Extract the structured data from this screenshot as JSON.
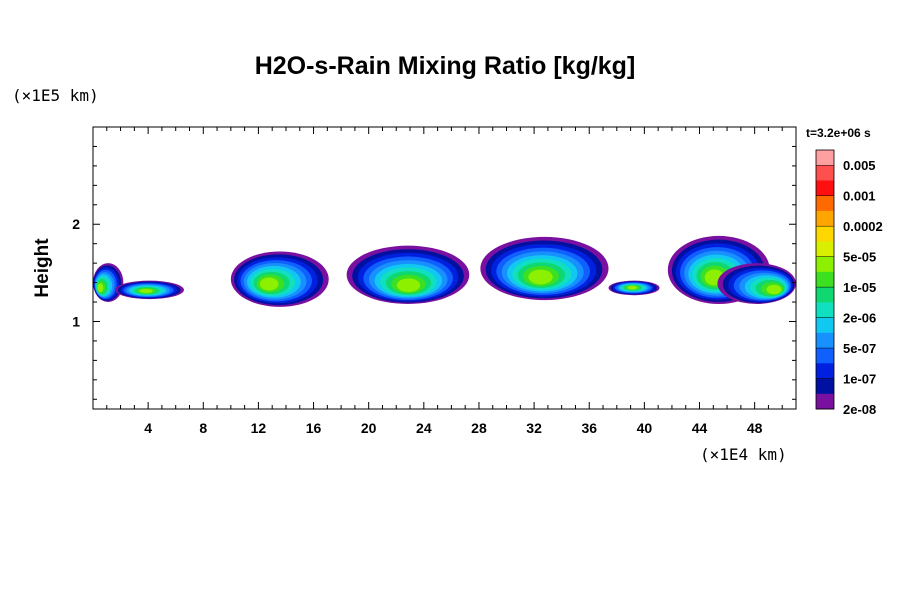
{
  "chart_data": {
    "type": "heatmap",
    "title": "H2O-s-Rain Mixing Ratio [kg/kg]",
    "xlabel": "",
    "ylabel": "Height",
    "x_unit": "(×1E4 km)",
    "y_unit": "(×1E5 km)",
    "time_label": "t=3.2e+06 s",
    "xlim": [
      0,
      51
    ],
    "ylim": [
      0.1,
      3.0
    ],
    "xticks": [
      4,
      8,
      12,
      16,
      20,
      24,
      28,
      32,
      36,
      40,
      44,
      48
    ],
    "xtick_labels": [
      "4",
      "8",
      "12",
      "16",
      "20",
      "24",
      "28",
      "32",
      "36",
      "40",
      "44",
      "48"
    ],
    "yticks": [
      1,
      2
    ],
    "ytick_labels": [
      "1",
      "2"
    ],
    "colorbar": {
      "labels": [
        "0.005",
        "0.001",
        "0.0002",
        "5e-05",
        "1e-05",
        "2e-06",
        "5e-07",
        "1e-07",
        "2e-08"
      ],
      "colors": [
        "#ffa0a0",
        "#ff5050",
        "#ff1010",
        "#ff6a00",
        "#ffa500",
        "#ffd700",
        "#d8f000",
        "#8cf000",
        "#3ce020",
        "#10d870",
        "#10e0c0",
        "#10c8f0",
        "#1890ff",
        "#1060ff",
        "#0020e0",
        "#0010a0",
        "#7a10a0"
      ]
    },
    "clouds": [
      {
        "x": [
          0,
          2.2
        ],
        "y": [
          1.2,
          1.6
        ],
        "core": [
          0.4,
          1.33
        ]
      },
      {
        "x": [
          1.6,
          6.6
        ],
        "y": [
          1.23,
          1.42
        ],
        "core": [
          3.8,
          1.31
        ]
      },
      {
        "x": [
          10,
          17.1
        ],
        "y": [
          1.15,
          1.72
        ],
        "core": [
          12.6,
          1.37
        ]
      },
      {
        "x": [
          18.4,
          27.3
        ],
        "y": [
          1.18,
          1.78
        ],
        "core": [
          22.9,
          1.34
        ]
      },
      {
        "x": [
          28.1,
          37.4
        ],
        "y": [
          1.22,
          1.87
        ],
        "core": [
          32.4,
          1.43
        ]
      },
      {
        "x": [
          37.4,
          41.1
        ],
        "y": [
          1.27,
          1.42
        ],
        "core": [
          39.1,
          1.35
        ]
      },
      {
        "x": [
          41.7,
          49.1
        ],
        "y": [
          1.18,
          1.88
        ],
        "core": [
          45,
          1.43
        ]
      },
      {
        "x": [
          45.3,
          51
        ],
        "y": [
          1.18,
          1.6
        ],
        "core": [
          49.7,
          1.31
        ]
      }
    ]
  }
}
